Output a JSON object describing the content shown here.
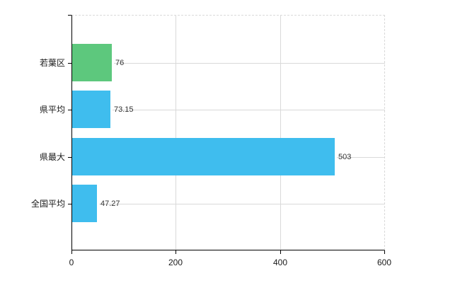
{
  "chart_data": {
    "type": "bar",
    "orientation": "horizontal",
    "title": "",
    "xlabel": "",
    "ylabel": "",
    "categories": [
      "若葉区",
      "県平均",
      "県最大",
      "全国平均"
    ],
    "values": [
      76,
      73.15,
      503,
      47.27
    ],
    "value_labels": [
      "76",
      "73.15",
      "503",
      "47.27"
    ],
    "bar_colors": [
      "#5dc87d",
      "#3fbdee",
      "#3fbdee",
      "#3fbdee"
    ],
    "xlim": [
      0,
      600
    ],
    "x_ticks": [
      0,
      200,
      400,
      600
    ],
    "x_tick_labels": [
      "0",
      "200",
      "400",
      "600"
    ],
    "grid": {
      "vertical_at_ticks": true,
      "horizontal_at_category_centers": true,
      "color": "#d9d9d9",
      "top_right_border_dashed": true
    },
    "legend": null
  },
  "colors": {
    "background": "#ffffff",
    "axis": "#000000",
    "grid": "#d9d9d9",
    "value_text": "#333333",
    "label_text": "#1a1a1a",
    "green_bar": "#5dc87d",
    "blue_bar": "#3fbdee"
  }
}
